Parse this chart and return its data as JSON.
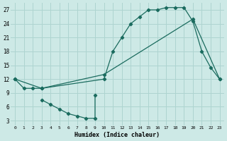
{
  "xlabel": "Humidex (Indice chaleur)",
  "bg_color": "#cde9e6",
  "grid_color": "#aed4d0",
  "line_color": "#1a6b5e",
  "line1": {
    "x": [
      0,
      1,
      2,
      3,
      10,
      11,
      12,
      13,
      14,
      15,
      16,
      17,
      18,
      19,
      20,
      21,
      22,
      23
    ],
    "y": [
      12,
      10,
      10,
      10,
      12,
      18,
      21,
      24,
      25.5,
      27,
      27,
      27.5,
      27.5,
      27.5,
      24.5,
      18,
      14.5,
      12
    ]
  },
  "line2": {
    "x": [
      0,
      3,
      10,
      20,
      23
    ],
    "y": [
      12,
      10,
      13,
      25,
      12
    ]
  },
  "line3": {
    "x": [
      3,
      4,
      5,
      6,
      7,
      8,
      9,
      9
    ],
    "y": [
      7.5,
      6.5,
      5.5,
      4.5,
      4.0,
      3.5,
      3.5,
      8.5
    ]
  },
  "xlim": [
    -0.5,
    23.5
  ],
  "ylim": [
    2,
    28.5
  ],
  "xticks": [
    0,
    1,
    2,
    3,
    4,
    5,
    6,
    7,
    8,
    9,
    10,
    11,
    12,
    13,
    14,
    15,
    16,
    17,
    18,
    19,
    20,
    21,
    22,
    23
  ],
  "yticks": [
    3,
    6,
    9,
    12,
    15,
    18,
    21,
    24,
    27
  ]
}
